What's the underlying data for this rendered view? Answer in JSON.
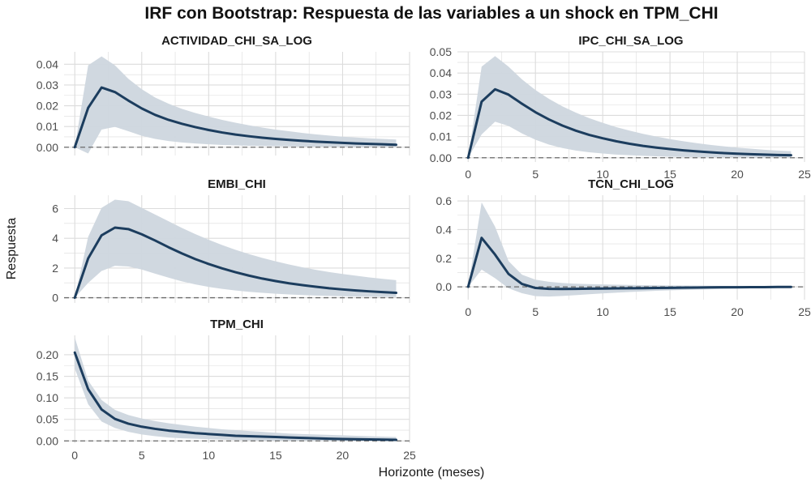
{
  "chart_data": {
    "type": "line",
    "title": "IRF con Bootstrap: Respuesta de las variables a un shock en TPM_CHI",
    "xlabel": "Horizonte (meses)",
    "ylabel": "Respuesta",
    "x": [
      0,
      1,
      2,
      3,
      4,
      5,
      6,
      7,
      8,
      9,
      10,
      11,
      12,
      13,
      14,
      15,
      16,
      17,
      18,
      19,
      20,
      21,
      22,
      23,
      24
    ],
    "xlim": [
      -0.8,
      25
    ],
    "xticks": [
      0,
      5,
      10,
      15,
      20,
      25
    ],
    "zero_line": 0,
    "colors": {
      "line": "#1c3d5e",
      "band": "#cdd6de",
      "grid": "#dcdcdc",
      "zero": "#6b6b6b"
    },
    "panels": [
      {
        "name": "ACTIVIDAD_CHI_SA_LOG",
        "ylim": [
          -0.004,
          0.046
        ],
        "yticks": [
          0,
          0.01,
          0.02,
          0.03,
          0.04
        ],
        "ytick_labels": [
          "0.00",
          "0.01",
          "0.02",
          "0.03",
          "0.04"
        ],
        "irf": [
          0,
          0.019,
          0.0288,
          0.0266,
          0.0225,
          0.0187,
          0.0156,
          0.0132,
          0.0113,
          0.0097,
          0.0083,
          0.0071,
          0.0061,
          0.0053,
          0.0046,
          0.004,
          0.0035,
          0.0031,
          0.0027,
          0.0024,
          0.0021,
          0.0018,
          0.0016,
          0.0014,
          0.0012
        ],
        "lower": [
          0,
          -0.003,
          0.0085,
          0.0098,
          0.0077,
          0.0055,
          0.004,
          0.003,
          0.0023,
          0.0018,
          0.0014,
          0.0011,
          0.0009,
          0.0007,
          0.0006,
          0.0005,
          0.0004,
          0.0003,
          0.0003,
          0.0002,
          0.0002,
          0.0001,
          0.0001,
          0.0001,
          0.0001
        ],
        "upper": [
          0,
          0.0395,
          0.0438,
          0.0395,
          0.033,
          0.028,
          0.024,
          0.021,
          0.0185,
          0.0165,
          0.0148,
          0.0132,
          0.0118,
          0.0106,
          0.0095,
          0.0085,
          0.0077,
          0.0069,
          0.0062,
          0.0056,
          0.0051,
          0.0047,
          0.0043,
          0.004,
          0.0037
        ]
      },
      {
        "name": "IPC_CHI_SA_LOG",
        "ylim": [
          -0.002,
          0.05
        ],
        "yticks": [
          0,
          0.01,
          0.02,
          0.03,
          0.04,
          0.05
        ],
        "ytick_labels": [
          "0.00",
          "0.01",
          "0.02",
          "0.03",
          "0.04",
          "0.05"
        ],
        "irf": [
          0,
          0.0265,
          0.0323,
          0.0298,
          0.0255,
          0.0215,
          0.0181,
          0.0152,
          0.0128,
          0.0108,
          0.0092,
          0.0078,
          0.0066,
          0.0056,
          0.0048,
          0.0041,
          0.0035,
          0.003,
          0.0026,
          0.0022,
          0.0019,
          0.0017,
          0.0015,
          0.0013,
          0.0012
        ],
        "lower": [
          0,
          0.011,
          0.017,
          0.015,
          0.0115,
          0.0085,
          0.0062,
          0.0046,
          0.0034,
          0.0026,
          0.002,
          0.0015,
          0.0012,
          0.0009,
          0.0007,
          0.0005,
          0.0004,
          0.0003,
          0.0003,
          0.0002,
          0.0002,
          0.0001,
          0.0001,
          0.0001,
          0.0001
        ],
        "upper": [
          0,
          0.043,
          0.048,
          0.043,
          0.037,
          0.032,
          0.0278,
          0.0243,
          0.0213,
          0.0187,
          0.0165,
          0.0145,
          0.0128,
          0.0113,
          0.01,
          0.0088,
          0.0078,
          0.0069,
          0.0061,
          0.0054,
          0.0048,
          0.0043,
          0.0038,
          0.0034,
          0.0031
        ]
      },
      {
        "name": "EMBI_CHI",
        "ylim": [
          -0.35,
          6.9
        ],
        "yticks": [
          0,
          2,
          4,
          6
        ],
        "ytick_labels": [
          "0",
          "2",
          "4",
          "6"
        ],
        "irf": [
          0,
          2.65,
          4.2,
          4.72,
          4.62,
          4.27,
          3.85,
          3.4,
          2.98,
          2.6,
          2.27,
          1.98,
          1.72,
          1.49,
          1.29,
          1.12,
          0.97,
          0.85,
          0.74,
          0.64,
          0.56,
          0.49,
          0.43,
          0.38,
          0.33
        ],
        "lower": [
          0,
          1.0,
          1.8,
          2.15,
          2.1,
          1.9,
          1.62,
          1.35,
          1.1,
          0.9,
          0.73,
          0.6,
          0.49,
          0.4,
          0.33,
          0.27,
          0.22,
          0.18,
          0.15,
          0.12,
          0.1,
          0.08,
          0.07,
          0.06,
          0.05
        ],
        "upper": [
          0,
          4.1,
          6.05,
          6.6,
          6.5,
          6.05,
          5.6,
          5.15,
          4.7,
          4.28,
          3.9,
          3.55,
          3.23,
          2.94,
          2.68,
          2.45,
          2.24,
          2.05,
          1.88,
          1.73,
          1.6,
          1.48,
          1.37,
          1.27,
          1.18
        ]
      },
      {
        "name": "TCN_CHI_LOG",
        "ylim": [
          -0.09,
          0.64
        ],
        "yticks": [
          0,
          0.2,
          0.4,
          0.6
        ],
        "ytick_labels": [
          "0.0",
          "0.2",
          "0.4",
          "0.6"
        ],
        "irf": [
          0,
          0.342,
          0.225,
          0.09,
          0.02,
          -0.008,
          -0.014,
          -0.015,
          -0.014,
          -0.013,
          -0.012,
          -0.011,
          -0.01,
          -0.009,
          -0.008,
          -0.007,
          -0.006,
          -0.005,
          -0.004,
          -0.003,
          -0.003,
          -0.002,
          -0.002,
          -0.001,
          -0.001
        ],
        "lower": [
          0,
          0.12,
          0.06,
          -0.01,
          -0.045,
          -0.065,
          -0.068,
          -0.064,
          -0.058,
          -0.052,
          -0.046,
          -0.041,
          -0.036,
          -0.032,
          -0.028,
          -0.025,
          -0.022,
          -0.019,
          -0.017,
          -0.015,
          -0.013,
          -0.011,
          -0.01,
          -0.009,
          -0.008
        ],
        "upper": [
          0,
          0.59,
          0.42,
          0.18,
          0.085,
          0.05,
          0.035,
          0.027,
          0.022,
          0.019,
          0.017,
          0.015,
          0.013,
          0.012,
          0.011,
          0.01,
          0.009,
          0.008,
          0.007,
          0.006,
          0.006,
          0.005,
          0.005,
          0.004,
          0.004
        ]
      },
      {
        "name": "TPM_CHI",
        "ylim": [
          -0.005,
          0.245
        ],
        "yticks": [
          0,
          0.05,
          0.1,
          0.15,
          0.2
        ],
        "ytick_labels": [
          "0.00",
          "0.05",
          "0.10",
          "0.15",
          "0.20"
        ],
        "irf": [
          0.205,
          0.12,
          0.073,
          0.051,
          0.04,
          0.033,
          0.028,
          0.024,
          0.021,
          0.018,
          0.016,
          0.014,
          0.012,
          0.011,
          0.01,
          0.009,
          0.008,
          0.007,
          0.006,
          0.005,
          0.0045,
          0.004,
          0.0035,
          0.003,
          0.0025
        ],
        "lower": [
          0.168,
          0.085,
          0.045,
          0.03,
          0.021,
          0.015,
          0.011,
          0.008,
          0.006,
          0.005,
          0.004,
          0.003,
          0.002,
          0.0015,
          0.001,
          0.0008,
          0.0006,
          0.0004,
          0.0003,
          0.0002,
          0.0001,
          0,
          0,
          0,
          0
        ],
        "upper": [
          0.24,
          0.14,
          0.095,
          0.072,
          0.06,
          0.052,
          0.046,
          0.041,
          0.037,
          0.033,
          0.03,
          0.027,
          0.025,
          0.023,
          0.021,
          0.019,
          0.017,
          0.016,
          0.015,
          0.014,
          0.013,
          0.012,
          0.011,
          0.01,
          0.009
        ]
      }
    ]
  }
}
